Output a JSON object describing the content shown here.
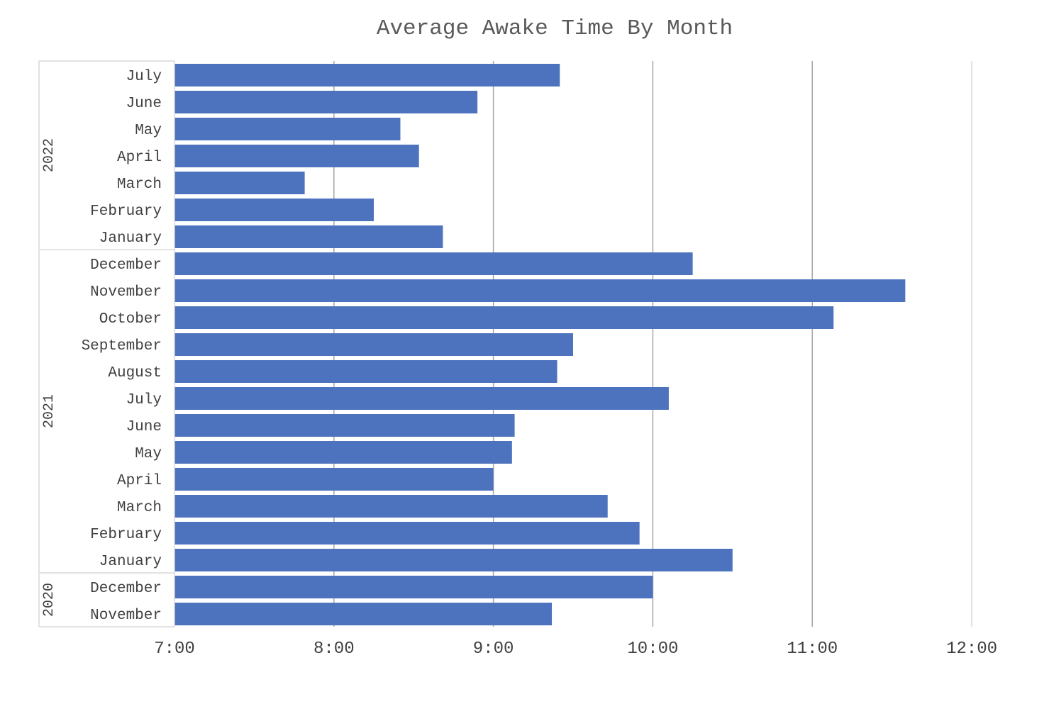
{
  "chart_data": {
    "type": "bar",
    "orientation": "horizontal",
    "title": "Average Awake Time By Month",
    "xlabel": "",
    "ylabel": "",
    "xlim": [
      "7:00",
      "12:00"
    ],
    "x_ticks": [
      "7:00",
      "8:00",
      "9:00",
      "10:00",
      "11:00",
      "12:00"
    ],
    "grid": "vertical",
    "legend": "none",
    "bar_color": "#4D72BE",
    "groups": [
      {
        "name": "2022",
        "categories": [
          "July",
          "June",
          "May",
          "April",
          "March",
          "February",
          "January"
        ],
        "values": [
          "9:25",
          "8:54",
          "8:25",
          "8:32",
          "7:49",
          "8:15",
          "8:41"
        ]
      },
      {
        "name": "2021",
        "categories": [
          "December",
          "November",
          "October",
          "September",
          "August",
          "July",
          "June",
          "May",
          "April",
          "March",
          "February",
          "January"
        ],
        "values": [
          "10:15",
          "11:35",
          "11:08",
          "9:30",
          "9:24",
          "10:06",
          "9:08",
          "9:07",
          "9:00",
          "9:43",
          "9:55",
          "10:30"
        ]
      },
      {
        "name": "2020",
        "categories": [
          "December",
          "November"
        ],
        "values": [
          "10:00",
          "9:22"
        ]
      }
    ]
  }
}
